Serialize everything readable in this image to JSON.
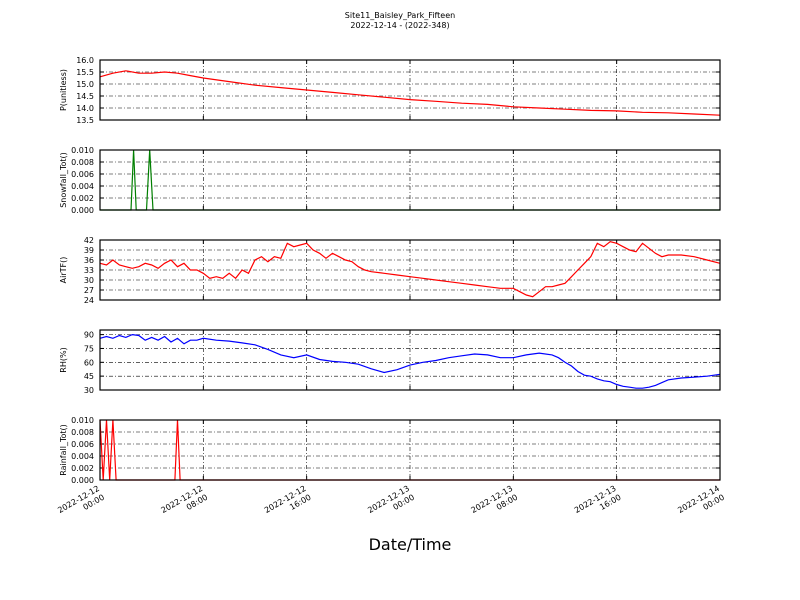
{
  "figure": {
    "title": "Site11_Baisley_Park_Fifteen",
    "subtitle": "2022-12-14 - (2022-348)",
    "xlabel": "Date/Time",
    "x_ticks": [
      [
        "2022-12-12",
        "00:00"
      ],
      [
        "2022-12-12",
        "08:00"
      ],
      [
        "2022-12-12",
        "16:00"
      ],
      [
        "2022-12-13",
        "00:00"
      ],
      [
        "2022-12-13",
        "08:00"
      ],
      [
        "2022-12-13",
        "16:00"
      ],
      [
        "2022-12-14",
        "00:00"
      ]
    ],
    "x_tick_hours": [
      0,
      8,
      16,
      24,
      32,
      40,
      48
    ]
  },
  "chart_data": [
    {
      "type": "line",
      "ylabel": "P(unitless)",
      "color": "#ff0000",
      "ylim": [
        13.5,
        16.0
      ],
      "yticks": [
        "13.5",
        "14.0",
        "14.5",
        "15.0",
        "15.5",
        "16.0"
      ],
      "ytick_values": [
        13.5,
        14.0,
        14.5,
        15.0,
        15.5,
        16.0
      ],
      "x_hours": [
        0,
        1,
        2,
        3,
        4,
        5,
        6,
        7,
        8,
        10,
        12,
        14,
        16,
        18,
        20,
        22,
        24,
        26,
        28,
        30,
        32,
        34,
        36,
        38,
        40,
        42,
        44,
        46,
        48
      ],
      "values": [
        15.3,
        15.45,
        15.55,
        15.45,
        15.45,
        15.5,
        15.45,
        15.35,
        15.25,
        15.1,
        14.95,
        14.85,
        14.75,
        14.65,
        14.55,
        14.45,
        14.35,
        14.28,
        14.2,
        14.15,
        14.05,
        14.0,
        13.95,
        13.9,
        13.88,
        13.82,
        13.8,
        13.75,
        13.7
      ]
    },
    {
      "type": "line",
      "ylabel": "Snowfall_Tot()",
      "color": "#007f00",
      "ylim": [
        0.0,
        0.01
      ],
      "yticks": [
        "0.000",
        "0.002",
        "0.004",
        "0.006",
        "0.008",
        "0.010"
      ],
      "ytick_values": [
        0.0,
        0.002,
        0.004,
        0.006,
        0.008,
        0.01
      ],
      "x_hours": [
        0,
        2.4,
        2.6,
        2.8,
        3.6,
        3.85,
        4.1,
        48
      ],
      "values": [
        0,
        0,
        0.01,
        0,
        0,
        0.01,
        0,
        0
      ]
    },
    {
      "type": "line",
      "ylabel": "AirTF()",
      "color": "#ff0000",
      "ylim": [
        24,
        42
      ],
      "yticks": [
        "24",
        "27",
        "30",
        "33",
        "36",
        "39",
        "42"
      ],
      "ytick_values": [
        24,
        27,
        30,
        33,
        36,
        39,
        42
      ],
      "x_hours": [
        0,
        0.5,
        1,
        1.5,
        2,
        2.5,
        3,
        3.5,
        4,
        4.5,
        5,
        5.5,
        6,
        6.5,
        7,
        7.5,
        8,
        8.5,
        9,
        9.5,
        10,
        10.5,
        11,
        11.5,
        12,
        12.5,
        13,
        13.5,
        14,
        14.5,
        15,
        15.5,
        16,
        16.5,
        17,
        17.5,
        18,
        18.5,
        19,
        19.5,
        20,
        20.5,
        21,
        22,
        23,
        24,
        25,
        26,
        27,
        28,
        29,
        30,
        31,
        32,
        32.5,
        33,
        33.5,
        34,
        34.5,
        35,
        35.5,
        36,
        36.5,
        37,
        37.5,
        38,
        38.5,
        39,
        39.5,
        40,
        40.5,
        41,
        41.5,
        42,
        42.5,
        43,
        43.5,
        44,
        45,
        46,
        47,
        48
      ],
      "values": [
        35,
        34.5,
        36,
        34.5,
        34,
        33.5,
        34,
        35,
        34.5,
        33.5,
        35,
        36,
        34,
        35,
        33,
        33,
        32,
        30.5,
        31,
        30.5,
        32,
        30.5,
        33,
        32,
        36,
        37,
        35.5,
        37,
        36.5,
        41,
        40,
        40.5,
        41,
        39,
        38,
        36.5,
        38,
        37,
        36,
        35.5,
        34,
        33,
        32.5,
        32,
        31.5,
        31,
        30.5,
        30,
        29.5,
        29,
        28.5,
        28,
        27.5,
        27.5,
        26.5,
        25.5,
        25,
        26.5,
        28,
        28,
        28.5,
        29,
        31,
        33,
        35,
        37,
        41,
        40,
        41.5,
        41,
        40,
        39,
        38.5,
        41,
        39.5,
        38,
        37,
        37.5,
        37.5,
        37,
        36,
        35
      ]
    },
    {
      "type": "line",
      "ylabel": "RH(%)",
      "color": "#0000ff",
      "ylim": [
        30,
        95
      ],
      "yticks": [
        "30",
        "45",
        "60",
        "75",
        "90"
      ],
      "ytick_values": [
        30,
        45,
        60,
        75,
        90
      ],
      "x_hours": [
        0,
        0.5,
        1,
        1.5,
        2,
        2.5,
        3,
        3.5,
        4,
        4.5,
        5,
        5.5,
        6,
        6.5,
        7,
        7.5,
        8,
        9,
        10,
        11,
        12,
        13,
        14,
        15,
        16,
        17,
        18,
        19,
        20,
        21,
        22,
        23,
        24,
        25,
        26,
        27,
        28,
        29,
        30,
        31,
        32,
        33,
        34,
        35,
        35.5,
        36,
        36.5,
        37,
        37.5,
        38,
        38.5,
        39,
        39.5,
        40,
        40.5,
        41,
        41.5,
        42,
        42.5,
        43,
        44,
        45,
        46,
        47,
        48
      ],
      "values": [
        86,
        88,
        86,
        89,
        87,
        90,
        89,
        84,
        87,
        84,
        88,
        82,
        86,
        80,
        84,
        84,
        86,
        84,
        83,
        81,
        79,
        74,
        68,
        65,
        68,
        63,
        61,
        60,
        58,
        53,
        49,
        52,
        57,
        60,
        62,
        65,
        67,
        69,
        68,
        65,
        65,
        68,
        70,
        68,
        65,
        60,
        56,
        50,
        46,
        45,
        42,
        40,
        39,
        36,
        34,
        33,
        32,
        32,
        33,
        35,
        41,
        43,
        44,
        45,
        47
      ]
    },
    {
      "type": "line",
      "ylabel": "Rainfall_Tot()",
      "color": "#ff0000",
      "ylim": [
        0.0,
        0.01
      ],
      "yticks": [
        "0.000",
        "0.002",
        "0.004",
        "0.006",
        "0.008",
        "0.010"
      ],
      "ytick_values": [
        0.0,
        0.002,
        0.004,
        0.006,
        0.008,
        0.01
      ],
      "x_hours": [
        0,
        0.25,
        0.5,
        0.75,
        1.0,
        1.25,
        1.5,
        5.8,
        6.0,
        6.2,
        48
      ],
      "values": [
        0.01,
        0,
        0.01,
        0,
        0.01,
        0,
        0,
        0,
        0.01,
        0,
        0
      ]
    }
  ]
}
